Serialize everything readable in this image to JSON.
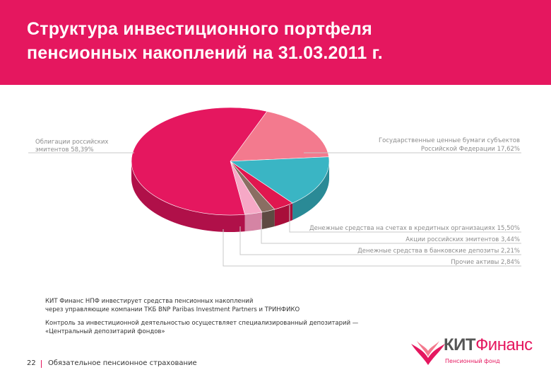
{
  "header": {
    "title_line1": "Структура инвестиционного портфеля",
    "title_line2": "пенсионных накоплений на 31.03.2011 г."
  },
  "chart_data": {
    "type": "pie",
    "slices": [
      {
        "label_line1": "Облигации российских",
        "label_line2": "эмитентов 58,39%",
        "value": 58.39,
        "color": "#e5175f",
        "side": "#b01049"
      },
      {
        "label_line1": "Государственные ценные бумаги субъектов",
        "label_line2": "Российской Федерации 17,62%",
        "value": 17.62,
        "color": "#f37a8e",
        "side": "#c65a6c"
      },
      {
        "label_line1": "Денежные средства на счетах в кредитных организациях 15,50%",
        "label_line2": "",
        "value": 15.5,
        "color": "#3ab5c4",
        "side": "#2a8a96"
      },
      {
        "label_line1": "Акции российских эмитентов 3,44%",
        "label_line2": "",
        "value": 3.44,
        "color": "#e0174f",
        "side": "#a80e3a"
      },
      {
        "label_line1": "Денежные средства в банковские депозиты 2,21%",
        "label_line2": "",
        "value": 2.21,
        "color": "#8a6e62",
        "side": "#5e4a42"
      },
      {
        "label_line1": "Прочие активы 2,84%",
        "label_line2": "",
        "value": 2.84,
        "color": "#f6a8c6",
        "side": "#d584a4"
      }
    ]
  },
  "notes": {
    "p1_line1": "КИТ Финанс НПФ инвестирует средства пенсионных накоплений",
    "p1_line2": "через управляющие компании ТКБ BNP Paribas Investment Partners и ТРИНФИКО",
    "p2_line1": "Контроль за инвестиционной деятельностью осуществляет специализированный депозитарий —",
    "p2_line2": "«Центральный депозитарий фондов»"
  },
  "footer": {
    "page_number": "22",
    "text": "Обязательное пенсионное страхование"
  },
  "logo": {
    "name_part1": "КИТ",
    "name_part2": "Финанс",
    "subtitle": "Пенсионный фонд",
    "icon": "kit-logo-icon"
  }
}
